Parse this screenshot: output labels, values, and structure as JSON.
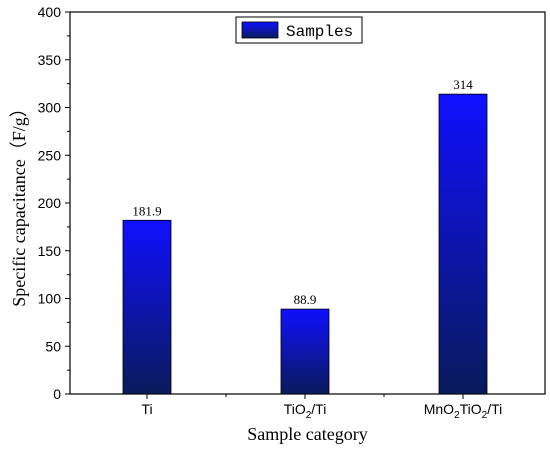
{
  "chart_data": {
    "type": "bar",
    "categories": [
      {
        "base": "Ti",
        "sub": "",
        "mid": "",
        "sub2": "",
        "tail": ""
      },
      {
        "base": "TiO",
        "sub": "2",
        "mid": "/Ti",
        "sub2": "",
        "tail": ""
      },
      {
        "base": "MnO",
        "sub": "2",
        "mid": "TiO",
        "sub2": "2",
        "tail": "/Ti"
      }
    ],
    "values": [
      181.9,
      88.9,
      314
    ],
    "data_labels": [
      "181.9",
      "88.9",
      "314"
    ],
    "series": [
      {
        "name": "Samples"
      }
    ],
    "xlabel": "Sample category",
    "ylabel": "Specific capacitance（F/g）",
    "ylim": [
      0,
      400
    ],
    "yticks": [
      0,
      50,
      100,
      150,
      200,
      250,
      300,
      350,
      400
    ],
    "legend_position": "top-center",
    "grid": false,
    "colors": {
      "bar_top": "#1010ff",
      "bar_bottom": "#0a1a5a",
      "axis": "#000000"
    }
  }
}
